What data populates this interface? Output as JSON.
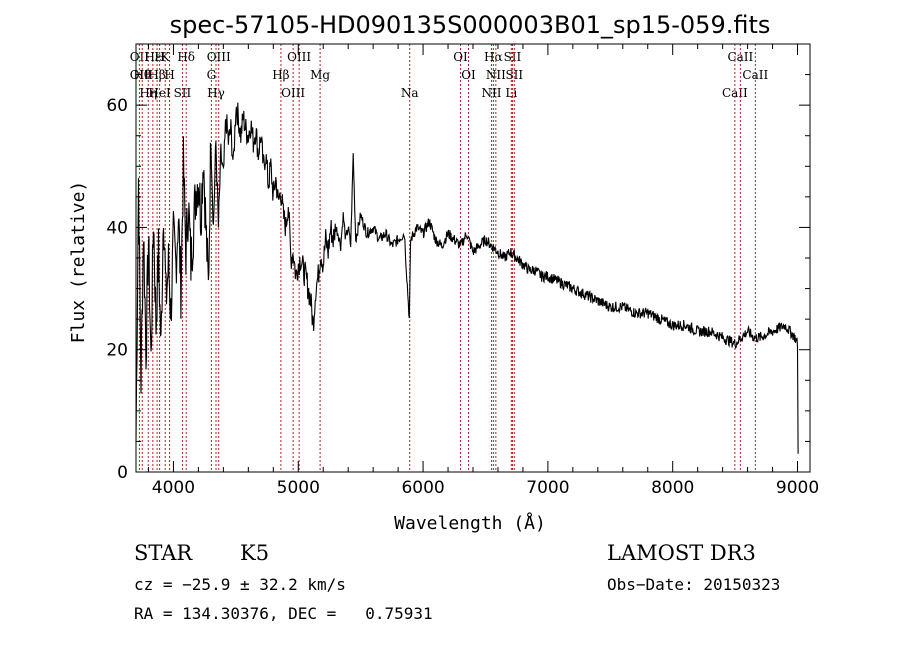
{
  "chart_data": {
    "type": "line",
    "title": "spec-57105-HD090135S000003B01_sp15-059.fits",
    "xlabel": "Wavelength (Å)",
    "ylabel": "Flux (relative)",
    "xlim": [
      3700,
      9100
    ],
    "ylim": [
      0,
      70
    ],
    "xticks": [
      4000,
      5000,
      6000,
      7000,
      8000,
      9000
    ],
    "yticks": [
      0,
      20,
      40,
      60
    ],
    "series": [
      {
        "name": "spectrum",
        "x": [
          3700,
          3720,
          3740,
          3760,
          3780,
          3800,
          3820,
          3840,
          3860,
          3880,
          3900,
          3920,
          3940,
          3960,
          3980,
          4000,
          4020,
          4040,
          4060,
          4080,
          4100,
          4120,
          4140,
          4160,
          4180,
          4200,
          4220,
          4240,
          4260,
          4280,
          4300,
          4320,
          4340,
          4360,
          4380,
          4400,
          4420,
          4440,
          4460,
          4480,
          4500,
          4520,
          4540,
          4560,
          4580,
          4600,
          4620,
          4640,
          4660,
          4680,
          4700,
          4720,
          4740,
          4760,
          4780,
          4800,
          4820,
          4840,
          4860,
          4880,
          4900,
          4920,
          4940,
          4960,
          4980,
          5000,
          5020,
          5040,
          5060,
          5080,
          5100,
          5120,
          5140,
          5160,
          5180,
          5200,
          5220,
          5240,
          5260,
          5280,
          5300,
          5320,
          5340,
          5360,
          5380,
          5400,
          5420,
          5440,
          5460,
          5480,
          5500,
          5550,
          5600,
          5650,
          5700,
          5750,
          5800,
          5850,
          5890,
          5900,
          5950,
          6000,
          6050,
          6100,
          6150,
          6200,
          6250,
          6300,
          6350,
          6400,
          6450,
          6500,
          6550,
          6600,
          6650,
          6700,
          6750,
          6800,
          6850,
          6900,
          6950,
          7000,
          7100,
          7200,
          7300,
          7400,
          7500,
          7600,
          7700,
          7800,
          7900,
          8000,
          8100,
          8200,
          8300,
          8400,
          8500,
          8550,
          8600,
          8650,
          8700,
          8800,
          8900,
          8980,
          9000,
          9005
        ],
        "values": [
          5,
          48,
          15,
          40,
          20,
          38,
          18,
          42,
          24,
          36,
          20,
          44,
          28,
          34,
          26,
          38,
          34,
          42,
          30,
          50,
          36,
          44,
          34,
          40,
          46,
          48,
          42,
          52,
          40,
          30,
          55,
          40,
          54,
          40,
          52,
          48,
          58,
          54,
          56,
          50,
          60,
          58,
          55,
          58,
          56,
          55,
          57,
          54,
          56,
          52,
          55,
          50,
          52,
          47,
          50,
          45,
          48,
          44,
          46,
          42,
          40,
          44,
          35,
          36,
          32,
          34,
          35,
          33,
          32,
          30,
          28,
          24,
          30,
          32,
          36,
          34,
          38,
          36,
          40,
          38,
          40,
          39,
          37,
          42,
          38,
          40,
          37,
          52,
          38,
          40,
          42,
          39,
          40,
          38,
          39,
          37,
          38,
          39,
          25,
          38,
          40,
          39,
          41,
          38,
          37,
          39,
          38,
          37,
          39,
          36,
          37,
          38,
          37,
          36,
          35,
          36,
          35,
          34,
          33,
          33,
          32,
          32,
          31,
          30,
          29,
          28,
          27,
          27,
          26,
          26,
          25,
          24,
          24,
          23,
          23,
          22,
          21,
          22,
          23,
          22,
          22,
          23,
          24,
          22,
          21,
          3
        ],
        "color": "#000000"
      }
    ],
    "line_markers": [
      {
        "wavelength": 3727,
        "labels": [
          "OII",
          "OII"
        ]
      },
      {
        "wavelength": 3750,
        "labels": [
          "Hθ"
        ]
      },
      {
        "wavelength": 3798,
        "labels": [
          "Hη"
        ]
      },
      {
        "wavelength": 3835,
        "labels": [
          "Hε"
        ]
      },
      {
        "wavelength": 3869,
        "labels": [
          "Hβ"
        ]
      },
      {
        "wavelength": 3889,
        "labels": [
          "HeI",
          "H"
        ]
      },
      {
        "wavelength": 3934,
        "labels": [
          "K"
        ]
      },
      {
        "wavelength": 3969,
        "labels": [
          "H"
        ]
      },
      {
        "wavelength": 4072,
        "labels": [
          "SII"
        ]
      },
      {
        "wavelength": 4102,
        "labels": [
          "Hδ"
        ]
      },
      {
        "wavelength": 4304,
        "labels": [
          "G"
        ]
      },
      {
        "wavelength": 4341,
        "labels": [
          "Hγ"
        ]
      },
      {
        "wavelength": 4363,
        "labels": [
          "OIII"
        ]
      },
      {
        "wavelength": 4861,
        "labels": [
          "Hβ"
        ]
      },
      {
        "wavelength": 4959,
        "labels": [
          "OIII"
        ]
      },
      {
        "wavelength": 5007,
        "labels": [
          "OIII"
        ]
      },
      {
        "wavelength": 5175,
        "labels": [
          "Mg"
        ]
      },
      {
        "wavelength": 5893,
        "labels": [
          "Na"
        ]
      },
      {
        "wavelength": 6300,
        "labels": [
          "OI"
        ]
      },
      {
        "wavelength": 6364,
        "labels": [
          "OI"
        ]
      },
      {
        "wavelength": 6548,
        "labels": [
          "NII"
        ]
      },
      {
        "wavelength": 6563,
        "labels": [
          "Hα"
        ]
      },
      {
        "wavelength": 6583,
        "labels": [
          "NII"
        ]
      },
      {
        "wavelength": 6707,
        "labels": [
          "Li"
        ]
      },
      {
        "wavelength": 6716,
        "labels": [
          "SII"
        ]
      },
      {
        "wavelength": 6731,
        "labels": [
          "SII"
        ]
      },
      {
        "wavelength": 8498,
        "labels": [
          "CaII"
        ]
      },
      {
        "wavelength": 8542,
        "labels": [
          "CaII"
        ]
      },
      {
        "wavelength": 8662,
        "labels": [
          "CaII"
        ]
      }
    ],
    "grid": false,
    "legend": "none"
  },
  "info": {
    "object_class": "STAR",
    "subclass": "K5",
    "survey": "LAMOST DR3",
    "cz": "cz = −25.9 ± 32.2 km/s",
    "obs_date": "Obs−Date: 20150323",
    "coords": "RA = 134.30376, DEC =   0.75931"
  }
}
